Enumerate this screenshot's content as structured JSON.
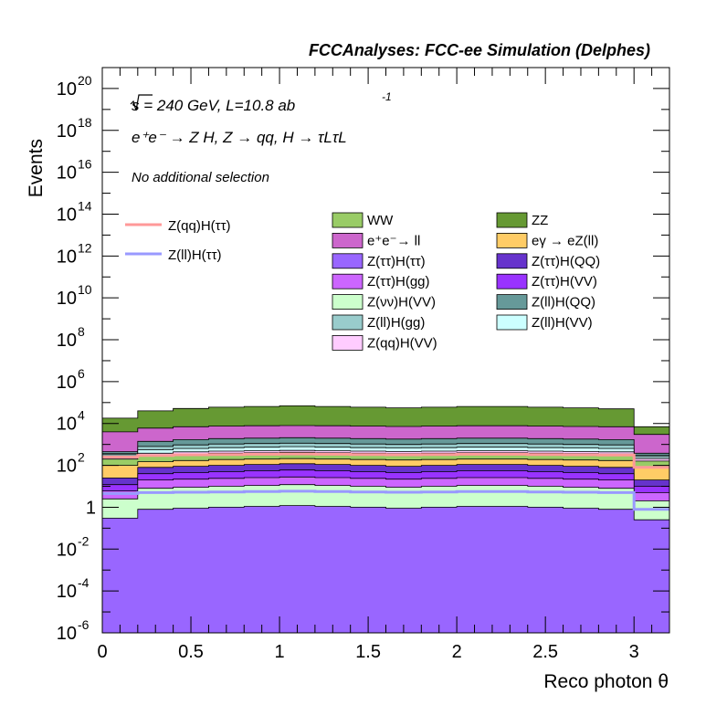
{
  "chart_data": {
    "type": "area",
    "title": "FCCAnalyses: FCC-ee Simulation (Delphes)",
    "xlabel": "Reco photon θ",
    "ylabel": "Events",
    "xlim": [
      0,
      3.2
    ],
    "ylim": [
      1e-06,
      1e+21
    ],
    "log_y": true,
    "grid": false,
    "x_ticks": [
      "0",
      "0.5",
      "1",
      "1.5",
      "2",
      "2.5",
      "3"
    ],
    "y_ticks": [
      {
        "base": "10",
        "exp": "-6"
      },
      {
        "base": "10",
        "exp": "-4"
      },
      {
        "base": "10",
        "exp": "-2"
      },
      {
        "base": "1",
        "exp": ""
      },
      {
        "base": "10",
        "exp": "2"
      },
      {
        "base": "10",
        "exp": "4"
      },
      {
        "base": "10",
        "exp": "6"
      },
      {
        "base": "10",
        "exp": "8"
      },
      {
        "base": "10",
        "exp": "10"
      },
      {
        "base": "10",
        "exp": "12"
      },
      {
        "base": "10",
        "exp": "14"
      },
      {
        "base": "10",
        "exp": "16"
      },
      {
        "base": "10",
        "exp": "18"
      },
      {
        "base": "10",
        "exp": "20"
      }
    ],
    "annotations": {
      "energy": "√s = 240 GeV, L=10.8 ab",
      "energy_exp": "-1",
      "process": "e⁺e⁻ → Z H, Z → qq, H → τLτL",
      "selection": "No additional selection"
    },
    "bin_edges": [
      0,
      0.2,
      0.4,
      0.6,
      0.8,
      1.0,
      1.2,
      1.4,
      1.6,
      1.8,
      2.0,
      2.2,
      2.4,
      2.6,
      2.8,
      3.0,
      3.2
    ],
    "stack_cumulative": [
      {
        "name": "Z(ττ)H(ττ)",
        "color": "#9966ff",
        "values": [
          0.3,
          0.8,
          0.9,
          1.0,
          1.1,
          1.2,
          1.1,
          1.0,
          0.9,
          1.0,
          1.1,
          1.1,
          1.0,
          0.9,
          0.8,
          0.25
        ]
      },
      {
        "name": "Z(νν)H(VV)",
        "color": "#ccffcc",
        "values": [
          2.5,
          8,
          9,
          10,
          11,
          12,
          11,
          10,
          9,
          10,
          11,
          11,
          10,
          9,
          8,
          2
        ]
      },
      {
        "name": "Z(ττ)H(gg)",
        "color": "#cc66ff",
        "values": [
          6,
          20,
          22,
          24,
          26,
          28,
          26,
          24,
          22,
          24,
          26,
          26,
          24,
          22,
          20,
          5
        ]
      },
      {
        "name": "Z(ττ)H(VV)",
        "color": "#9933ff",
        "values": [
          12,
          40,
          45,
          50,
          55,
          60,
          55,
          50,
          45,
          50,
          55,
          55,
          50,
          45,
          40,
          10
        ]
      },
      {
        "name": "Z(ττ)H(QQ)",
        "color": "#6633cc",
        "values": [
          25,
          80,
          90,
          100,
          110,
          120,
          110,
          100,
          90,
          100,
          110,
          110,
          100,
          90,
          80,
          20
        ]
      },
      {
        "name": "eγ → eZ(ll)",
        "color": "#ffcc66",
        "values": [
          100,
          150,
          170,
          190,
          200,
          210,
          200,
          190,
          180,
          190,
          200,
          200,
          190,
          180,
          170,
          80
        ]
      },
      {
        "name": "WW",
        "color": "#99cc66",
        "values": [
          200,
          300,
          350,
          380,
          400,
          420,
          400,
          380,
          370,
          380,
          400,
          400,
          380,
          370,
          350,
          160
        ]
      },
      {
        "name": "Z(qq)H(VV)",
        "color": "#ffccff",
        "values": [
          260,
          380,
          440,
          480,
          500,
          520,
          500,
          480,
          460,
          480,
          500,
          500,
          480,
          460,
          440,
          210
        ]
      },
      {
        "name": "Z(ll)H(VV)",
        "color": "#ccffff",
        "values": [
          320,
          550,
          640,
          700,
          740,
          780,
          740,
          700,
          680,
          700,
          740,
          740,
          700,
          680,
          640,
          260
        ]
      },
      {
        "name": "Z(ll)H(gg)",
        "color": "#99cccc",
        "values": [
          360,
          800,
          950,
          1050,
          1100,
          1150,
          1100,
          1050,
          1000,
          1050,
          1100,
          1100,
          1050,
          1000,
          950,
          300
        ]
      },
      {
        "name": "Z(ll)H(QQ)",
        "color": "#669999",
        "values": [
          450,
          1400,
          1700,
          1900,
          2000,
          2100,
          2000,
          1900,
          1800,
          1900,
          2000,
          2000,
          1900,
          1800,
          1700,
          380
        ]
      },
      {
        "name": "e⁺e⁻→ ll",
        "color": "#cc66cc",
        "values": [
          4000,
          6000,
          7000,
          7500,
          7800,
          8000,
          7800,
          7500,
          7200,
          7500,
          7800,
          7800,
          7500,
          7200,
          7000,
          3000
        ]
      },
      {
        "name": "ZZ",
        "color": "#669933",
        "values": [
          18000,
          40000,
          52000,
          60000,
          65000,
          70000,
          65000,
          60000,
          56000,
          60000,
          65000,
          65000,
          60000,
          56000,
          50000,
          7000
        ]
      }
    ],
    "signal_lines": [
      {
        "name": "Z(qq)H(ττ)",
        "color": "#ff9999",
        "values": [
          250,
          300,
          320,
          330,
          340,
          350,
          340,
          330,
          320,
          330,
          340,
          340,
          330,
          320,
          310,
          80
        ]
      },
      {
        "name": "Z(ll)H(ττ)",
        "color": "#9999ff",
        "values": [
          4.5,
          5,
          5.2,
          5.4,
          5.6,
          5.8,
          5.6,
          5.4,
          5.2,
          5.4,
          5.6,
          5.6,
          5.4,
          5.2,
          5,
          0.8
        ]
      }
    ],
    "legend_placement": "top-right",
    "legend_stack": [
      {
        "name": "WW",
        "color": "#99cc66"
      },
      {
        "name": "ZZ",
        "color": "#669933"
      },
      {
        "name": "e⁺e⁻→ ll",
        "color": "#cc66cc"
      },
      {
        "name": "eγ → eZ(ll)",
        "color": "#ffcc66"
      },
      {
        "name": "Z(ττ)H(ττ)",
        "color": "#9966ff"
      },
      {
        "name": "Z(ττ)H(QQ)",
        "color": "#6633cc"
      },
      {
        "name": "Z(ττ)H(gg)",
        "color": "#cc66ff"
      },
      {
        "name": "Z(ττ)H(VV)",
        "color": "#9933ff"
      },
      {
        "name": "Z(νν)H(VV)",
        "color": "#ccffcc"
      },
      {
        "name": "Z(ll)H(QQ)",
        "color": "#669999"
      },
      {
        "name": "Z(ll)H(gg)",
        "color": "#99cccc"
      },
      {
        "name": "Z(ll)H(VV)",
        "color": "#ccffff"
      },
      {
        "name": "Z(qq)H(VV)",
        "color": "#ffccff"
      }
    ],
    "legend_lines": [
      {
        "name": "Z(qq)H(ττ)",
        "color": "#ff9999"
      },
      {
        "name": "Z(ll)H(ττ)",
        "color": "#9999ff"
      }
    ]
  }
}
